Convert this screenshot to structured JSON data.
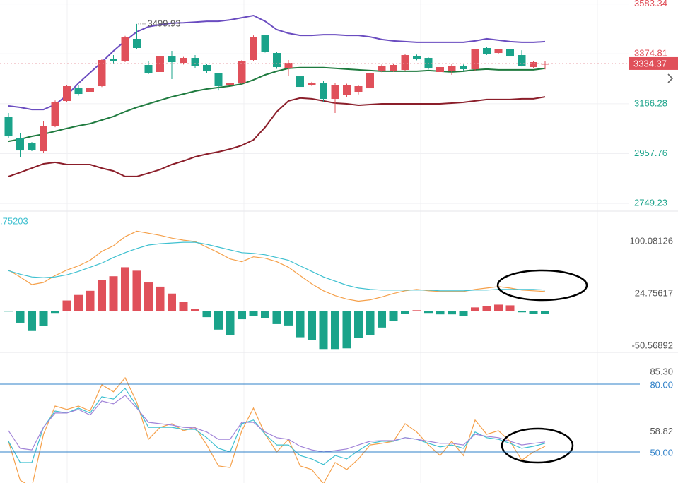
{
  "chart_data": [
    {
      "type": "candlestick",
      "open": [
        3112.7,
        3024.1,
        3000.5,
        2968.0,
        3074.3,
        3177.7,
        3230.8,
        3216.1,
        3239.7,
        3354.9,
        3346.0,
        3437.6,
        3328.3,
        3298.8,
        3363.7,
        3337.2,
        3357.8,
        3328.3,
        3295.8,
        3242.6,
        3251.5,
        3349.0,
        3452.3,
        3378.5,
        3313.5,
        3281.0,
        3245.6,
        3251.5,
        3186.5,
        3204.3,
        3216.1,
        3230.8,
        3301.7,
        3304.7,
        3307.6,
        3366.7,
        3357.8,
        3298.8,
        3301.7,
        3325.3,
        3310.6,
        3399.2,
        3378.5,
        3393.3,
        3369.6,
        3319.4,
        3330.0
      ],
      "high": [
        3127.5,
        3044.8,
        3006.0,
        3092.0,
        3180.0,
        3245.6,
        3245.6,
        3240.0,
        3352.0,
        3369.6,
        3450.0,
        3499.93,
        3345.0,
        3370.0,
        3387.4,
        3362.0,
        3369.6,
        3334.0,
        3296.0,
        3256.0,
        3349.0,
        3452.0,
        3455.0,
        3384.0,
        3349.0,
        3292.9,
        3258.0,
        3260.4,
        3251.5,
        3250.0,
        3245.0,
        3300.0,
        3330.0,
        3335.0,
        3372.6,
        3372.0,
        3360.0,
        3322.0,
        3334.2,
        3330.0,
        3395.0,
        3402.0,
        3396.0,
        3416.9,
        3390.0,
        3345.0,
        3346.0
      ],
      "low": [
        3024.1,
        2944.4,
        2968.0,
        2959.1,
        3068.0,
        3171.8,
        3200.0,
        3207.2,
        3236.0,
        3334.2,
        3340.0,
        3393.3,
        3290.0,
        3295.0,
        3269.2,
        3330.0,
        3313.5,
        3295.0,
        3221.8,
        3236.0,
        3248.0,
        3343.0,
        3380.0,
        3312.0,
        3284.0,
        3213.1,
        3240.0,
        3171.8,
        3127.5,
        3195.0,
        3205.0,
        3225.0,
        3298.0,
        3300.0,
        3304.0,
        3348.0,
        3310.0,
        3290.0,
        3287.0,
        3305.0,
        3305.0,
        3370.0,
        3375.0,
        3354.9,
        3322.0,
        3315.0,
        3310.0
      ],
      "close": [
        3030.0,
        2970.9,
        2973.9,
        3074.3,
        3171.8,
        3239.7,
        3207.2,
        3233.8,
        3349.0,
        3343.1,
        3443.5,
        3399.2,
        3295.8,
        3363.7,
        3340.1,
        3357.8,
        3325.3,
        3301.7,
        3239.7,
        3251.5,
        3343.1,
        3446.4,
        3384.4,
        3319.4,
        3337.2,
        3236.7,
        3254.5,
        3186.5,
        3245.6,
        3245.6,
        3239.7,
        3295.8,
        3325.3,
        3328.3,
        3369.6,
        3351.9,
        3313.5,
        3319.4,
        3325.3,
        3310.6,
        3393.3,
        3372.6,
        3393.3,
        3363.7,
        3325.3,
        3340.1,
        3334.37
      ],
      "up_color": "#e0505a",
      "down_color": "#1aa38a",
      "bands": [
        {
          "color": "#6a4cc0",
          "values": [
            3157,
            3151,
            3142,
            3142,
            3163,
            3201,
            3252,
            3296,
            3340,
            3387,
            3429,
            3467,
            3488,
            3497,
            3503,
            3505,
            3508,
            3511,
            3511,
            3517,
            3526,
            3535,
            3511,
            3476,
            3461,
            3452,
            3452,
            3455,
            3455,
            3452,
            3452,
            3446,
            3435,
            3429,
            3426,
            3423,
            3423,
            3423,
            3423,
            3423,
            3429,
            3438,
            3432,
            3426,
            3423,
            3423,
            3426
          ]
        },
        {
          "color": "#1e7a3e",
          "values": [
            3009,
            3018,
            3030,
            3039,
            3051,
            3063,
            3074,
            3083,
            3098,
            3113,
            3133,
            3151,
            3166,
            3181,
            3195,
            3207,
            3219,
            3228,
            3234,
            3240,
            3249,
            3266,
            3287,
            3302,
            3314,
            3317,
            3317,
            3317,
            3314,
            3311,
            3308,
            3305,
            3302,
            3302,
            3302,
            3302,
            3305,
            3302,
            3299,
            3302,
            3308,
            3311,
            3308,
            3308,
            3308,
            3308,
            3314
          ]
        },
        {
          "color": "#8b1e2a",
          "values": [
            2862,
            2879,
            2897,
            2915,
            2921,
            2912,
            2912,
            2912,
            2897,
            2885,
            2862,
            2862,
            2876,
            2891,
            2912,
            2927,
            2944,
            2956,
            2965,
            2977,
            2992,
            3015,
            3068,
            3133,
            3178,
            3190,
            3187,
            3178,
            3169,
            3166,
            3160,
            3163,
            3166,
            3166,
            3166,
            3166,
            3166,
            3166,
            3169,
            3172,
            3178,
            3184,
            3184,
            3184,
            3187,
            3187,
            3195
          ]
        }
      ],
      "ylim": [
        2720,
        3600
      ],
      "yticks": [
        3583.34,
        3374.81,
        3166.28,
        2957.76,
        2749.23
      ],
      "grid": true
    },
    {
      "type": "macd",
      "legend_text": ".75203",
      "histogram": {
        "up_color": "#e0505a",
        "down_color": "#1aa38a",
        "values": [
          -1,
          -17,
          -29,
          -22,
          -3,
          15,
          23,
          29,
          45,
          50,
          63,
          58,
          41,
          35,
          25,
          13,
          3,
          -9,
          -27,
          -35,
          -12,
          -7,
          -10,
          -19,
          -21,
          -38,
          -42,
          -55,
          -55,
          -54,
          -39,
          -35,
          -24,
          -15,
          -4,
          1,
          -3,
          -5,
          -5,
          -7,
          5,
          7,
          9,
          8,
          -2,
          -4,
          -4
        ]
      },
      "series": [
        {
          "color": "#f5a04a",
          "values": [
            59,
            49,
            38,
            41,
            51,
            59,
            65,
            73,
            86,
            94,
            107,
            115,
            112,
            109,
            105,
            102,
            100,
            92,
            84,
            75,
            71,
            78,
            76,
            71,
            63,
            51,
            39,
            29,
            22,
            17,
            14,
            16,
            20,
            25,
            29,
            31,
            29,
            28,
            28,
            28,
            31,
            33,
            35,
            33,
            30,
            29,
            28
          ]
        },
        {
          "color": "#3ec0d0",
          "values": [
            58,
            53,
            49,
            48,
            49,
            52,
            57,
            63,
            69,
            77,
            84,
            90,
            95,
            97,
            98,
            99,
            99,
            96,
            92,
            88,
            84,
            83,
            81,
            77,
            73,
            65,
            57,
            49,
            43,
            37,
            33,
            31,
            30,
            30,
            30,
            30,
            30,
            29,
            29,
            29,
            30,
            30,
            31,
            31,
            31,
            31,
            30
          ]
        }
      ],
      "ylim": [
        -58.8,
        142.9
      ],
      "yticks": [
        100.08126,
        24.75617,
        -50.56892
      ]
    },
    {
      "type": "line",
      "series": [
        {
          "color": "#f5a04a",
          "values": [
            54.7,
            37.5,
            34.4,
            57.8,
            70.3,
            68.8,
            70.3,
            68.1,
            79.7,
            76.6,
            82.8,
            71.9,
            55.6,
            60.9,
            62.5,
            59.4,
            60.9,
            53.1,
            43.8,
            43.1,
            59.4,
            69.4,
            57.8,
            50.0,
            55.6,
            43.8,
            42.2,
            35.9,
            45.3,
            42.2,
            46.9,
            53.1,
            53.8,
            54.7,
            62.5,
            58.8,
            53.1,
            48.4,
            54.7,
            48.4,
            64.1,
            57.8,
            59.4,
            54.7,
            46.3,
            50.0,
            52.5
          ]
        },
        {
          "color": "#3ec0d0",
          "values": [
            54.7,
            45.3,
            45.3,
            60.9,
            68.1,
            67.2,
            69.4,
            67.2,
            74.4,
            73.4,
            78.1,
            70.3,
            60.9,
            60.9,
            60.9,
            60.0,
            60.0,
            56.3,
            51.6,
            50.0,
            62.5,
            64.1,
            57.8,
            53.1,
            53.1,
            48.4,
            46.9,
            44.4,
            48.4,
            46.9,
            50.6,
            53.8,
            54.7,
            54.7,
            56.3,
            55.6,
            53.8,
            52.2,
            53.1,
            51.6,
            58.8,
            56.3,
            55.6,
            53.8,
            51.6,
            52.5,
            53.8
          ]
        },
        {
          "color": "#a184d8",
          "values": [
            59.4,
            51.6,
            50.9,
            60.9,
            67.2,
            67.2,
            68.8,
            66.3,
            72.5,
            71.3,
            75.0,
            69.4,
            63.1,
            62.5,
            61.9,
            60.9,
            60.6,
            58.8,
            55.6,
            55.6,
            63.1,
            63.1,
            58.8,
            56.3,
            55.6,
            52.5,
            50.9,
            50.0,
            50.6,
            51.3,
            53.1,
            54.7,
            55.0,
            55.0,
            56.3,
            55.6,
            54.7,
            53.8,
            53.8,
            53.1,
            57.8,
            56.9,
            56.3,
            54.7,
            53.1,
            53.8,
            54.4
          ]
        }
      ],
      "hlines": [
        {
          "value": 80,
          "label": "80.00"
        },
        {
          "value": 50,
          "label": "50.00"
        }
      ],
      "hline_color": "#2f80c8",
      "ylim": [
        36.25,
        93.1
      ],
      "yticks": [
        {
          "value": 85.3,
          "label": "85.30"
        },
        58.82
      ]
    }
  ]
}
